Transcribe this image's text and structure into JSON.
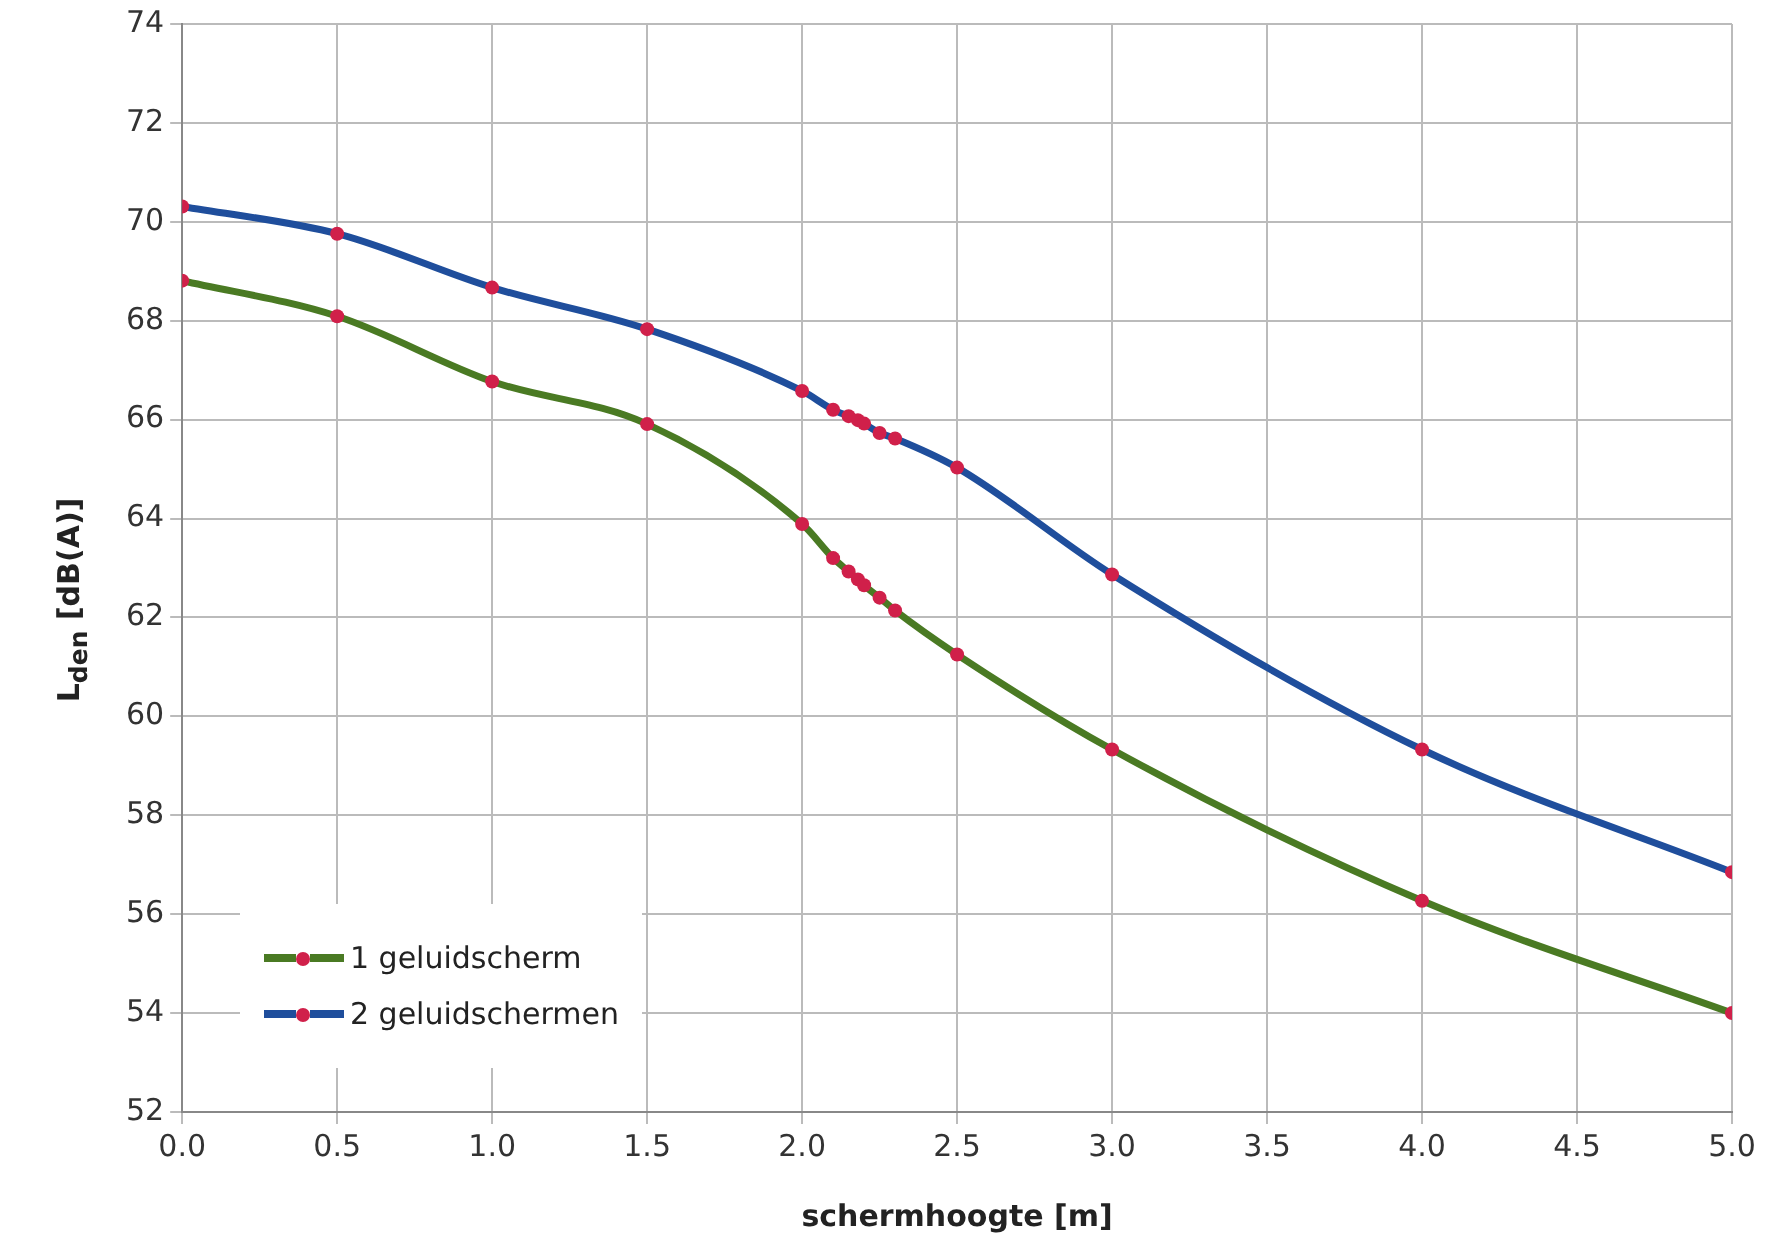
{
  "chart_data": {
    "type": "line",
    "xlabel": "schermhoogte [m]",
    "ylabel": "L$_{den}$ [dB(A)]",
    "x": [
      0,
      0.5,
      1,
      1.5,
      2,
      2.1,
      2.15,
      2.18,
      2.2,
      2.25,
      2.3,
      2.5,
      3,
      4,
      5
    ],
    "series": [
      {
        "name": "1 geluidscherm",
        "color": "#4a7a23",
        "colors": [
          "#d0204a",
          "#d0204a",
          "#d0204a",
          "#d0204a",
          "#d0204a",
          "#d0204a",
          "#d0204a",
          "#d0204a",
          "#d0204a",
          "#d0204a",
          "#d0204a",
          "#d0204a",
          "#d0204a",
          "#d0204a",
          "#d0204a"
        ],
        "values": [
          68.81,
          68.09,
          66.77,
          65.91,
          63.89,
          63.2,
          62.93,
          62.77,
          62.65,
          62.4,
          62.14,
          61.25,
          59.33,
          56.27,
          54.0
        ]
      },
      {
        "name": "2 geluidschermen",
        "color": "#1f4e9c",
        "colors": [
          "#d0204a",
          "#d0204a",
          "#d0204a",
          "#d0204a",
          "#d0204a",
          "#d0204a",
          "#d0204a",
          "#d0204a",
          "#d0204a",
          "#d0204a",
          "#d0204a",
          "#d0204a",
          "#d0204a",
          "#d0204a",
          "#d0204a"
        ],
        "values": [
          70.31,
          69.76,
          68.67,
          67.83,
          66.58,
          66.2,
          66.07,
          65.99,
          65.92,
          65.73,
          65.62,
          65.03,
          62.87,
          59.33,
          56.85
        ]
      }
    ],
    "xlim": [
      0,
      5
    ],
    "xticks": [
      {
        "value": 0,
        "label": "0.0"
      },
      {
        "value": 0.5,
        "label": "0.5"
      },
      {
        "value": 1,
        "label": "1.0"
      },
      {
        "value": 1.5,
        "label": "1.5"
      },
      {
        "value": 2,
        "label": "2.0"
      },
      {
        "value": 2.5,
        "label": "2.5"
      },
      {
        "value": 3,
        "label": "3.0"
      },
      {
        "value": 3.5,
        "label": "3.5"
      },
      {
        "value": 4,
        "label": "4.0"
      },
      {
        "value": 4.5,
        "label": "4.5"
      },
      {
        "value": 5,
        "label": "5.0"
      }
    ],
    "ylim": [
      52,
      74
    ],
    "yticks": [
      52,
      54,
      56,
      58,
      60,
      62,
      64,
      66,
      68,
      70,
      72,
      74
    ],
    "grid": true,
    "legend": "bottom left",
    "marker": "circle",
    "line_style": "solid"
  }
}
